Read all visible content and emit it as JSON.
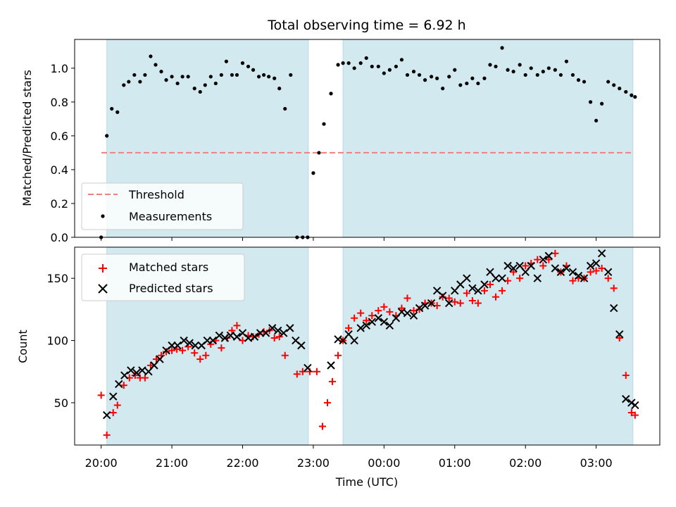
{
  "chart_data": {
    "title": "Total observing time = 6.92 h",
    "xlabel": "Time (UTC)",
    "x_ticks": [
      "20:00",
      "21:00",
      "22:00",
      "23:00",
      "00:00",
      "01:00",
      "02:00",
      "03:00"
    ],
    "x_tick_hours": [
      20,
      21,
      22,
      23,
      24,
      25,
      26,
      27
    ],
    "x_range_hours": [
      19.625,
      27.9
    ],
    "shaded_intervals_hours": [
      [
        20.08,
        22.93
      ],
      [
        23.42,
        27.52
      ]
    ],
    "shade_color": "#d2e9f0",
    "panels": [
      {
        "type": "scatter",
        "ylabel": "Matched/Predicted stars",
        "ylim": [
          0,
          1.17
        ],
        "y_ticks": [
          "0.0",
          "0.2",
          "0.4",
          "0.6",
          "0.8",
          "1.0"
        ],
        "threshold": {
          "name": "Threshold",
          "value": 0.5,
          "color": "#f08080",
          "style": "dashed"
        },
        "series": [
          {
            "name": "Measurements",
            "color": "#000000",
            "marker": "dot",
            "x": [
              20.0,
              20.08,
              20.15,
              20.23,
              20.32,
              20.39,
              20.47,
              20.55,
              20.62,
              20.7,
              20.77,
              20.85,
              20.92,
              21.0,
              21.08,
              21.15,
              21.23,
              21.32,
              21.4,
              21.47,
              21.55,
              21.62,
              21.7,
              21.77,
              21.85,
              21.92,
              22.0,
              22.08,
              22.15,
              22.23,
              22.3,
              22.37,
              22.45,
              22.52,
              22.6,
              22.68,
              22.77,
              22.85,
              22.92,
              23.0,
              23.08,
              23.15,
              23.25,
              23.35,
              23.42,
              23.5,
              23.58,
              23.67,
              23.75,
              23.83,
              23.92,
              24.0,
              24.08,
              24.17,
              24.25,
              24.33,
              24.42,
              24.5,
              24.58,
              24.67,
              24.75,
              24.83,
              24.92,
              25.0,
              25.08,
              25.17,
              25.25,
              25.33,
              25.42,
              25.5,
              25.58,
              25.67,
              25.75,
              25.83,
              25.92,
              26.0,
              26.08,
              26.17,
              26.25,
              26.33,
              26.42,
              26.5,
              26.58,
              26.67,
              26.75,
              26.83,
              26.92,
              27.0,
              27.08,
              27.17,
              27.25,
              27.33,
              27.42,
              27.5,
              27.55
            ],
            "y": [
              0.0,
              0.6,
              0.76,
              0.74,
              0.9,
              0.92,
              0.96,
              0.92,
              0.96,
              1.07,
              1.02,
              0.98,
              0.93,
              0.95,
              0.91,
              0.95,
              0.95,
              0.88,
              0.86,
              0.9,
              0.95,
              0.91,
              0.96,
              1.04,
              0.96,
              0.96,
              1.03,
              1.01,
              0.99,
              0.95,
              0.96,
              0.95,
              0.94,
              0.88,
              0.76,
              0.96,
              0.0,
              0.0,
              0.0,
              0.38,
              0.5,
              0.67,
              0.85,
              1.02,
              1.03,
              1.03,
              1.0,
              1.03,
              1.06,
              1.01,
              1.01,
              0.97,
              0.99,
              1.01,
              1.05,
              0.96,
              0.98,
              0.96,
              0.93,
              0.95,
              0.94,
              0.88,
              0.95,
              0.99,
              0.9,
              0.91,
              0.94,
              0.91,
              0.94,
              1.02,
              1.01,
              1.12,
              0.99,
              0.98,
              1.02,
              0.96,
              1.0,
              0.96,
              0.98,
              1.0,
              0.99,
              0.96,
              1.04,
              0.96,
              0.93,
              0.92,
              0.8,
              0.69,
              0.79,
              0.92,
              0.9,
              0.88,
              0.86,
              0.84,
              0.83
            ]
          }
        ]
      },
      {
        "type": "scatter",
        "ylabel": "Count",
        "ylim": [
          16,
          175
        ],
        "y_ticks": [
          "50",
          "100",
          "150"
        ],
        "y_tick_values": [
          50,
          100,
          150
        ],
        "series": [
          {
            "name": "Matched stars",
            "color": "#ff0000",
            "marker": "plus",
            "x": [
              20.0,
              20.08,
              20.17,
              20.23,
              20.32,
              20.4,
              20.48,
              20.55,
              20.62,
              20.7,
              20.78,
              20.85,
              20.92,
              21.0,
              21.07,
              21.15,
              21.23,
              21.32,
              21.4,
              21.48,
              21.55,
              21.62,
              21.7,
              21.78,
              21.85,
              21.92,
              22.0,
              22.08,
              22.15,
              22.23,
              22.3,
              22.38,
              22.45,
              22.52,
              22.6,
              22.77,
              22.85,
              22.95,
              23.05,
              23.13,
              23.2,
              23.27,
              23.35,
              23.42,
              23.5,
              23.58,
              23.67,
              23.75,
              23.83,
              23.92,
              24.0,
              24.08,
              24.17,
              24.25,
              24.33,
              24.42,
              24.5,
              24.58,
              24.67,
              24.75,
              24.83,
              24.92,
              25.0,
              25.08,
              25.17,
              25.25,
              25.33,
              25.42,
              25.5,
              25.58,
              25.67,
              25.75,
              25.83,
              25.92,
              26.0,
              26.08,
              26.17,
              26.25,
              26.33,
              26.42,
              26.5,
              26.58,
              26.67,
              26.75,
              26.83,
              26.92,
              27.0,
              27.08,
              27.17,
              27.25,
              27.33,
              27.42,
              27.5,
              27.55
            ],
            "y": [
              56,
              24,
              42,
              48,
              64,
              70,
              72,
              70,
              70,
              80,
              85,
              88,
              91,
              92,
              93,
              92,
              95,
              90,
              85,
              88,
              97,
              100,
              94,
              102,
              108,
              112,
              100,
              104,
              103,
              105,
              107,
              108,
              102,
              103,
              88,
              73,
              75,
              75,
              75,
              31,
              50,
              67,
              88,
              100,
              110,
              118,
              122,
              116,
              120,
              124,
              127,
              123,
              120,
              126,
              134,
              124,
              125,
              130,
              130,
              128,
              135,
              134,
              131,
              130,
              138,
              132,
              130,
              140,
              145,
              135,
              140,
              148,
              155,
              150,
              160,
              162,
              165,
              160,
              165,
              170,
              155,
              160,
              148,
              150,
              150,
              155,
              156,
              158,
              150,
              142,
              102,
              72,
              42,
              40
            ]
          },
          {
            "name": "Predicted stars",
            "color": "#000000",
            "marker": "x",
            "x": [
              20.08,
              20.17,
              20.25,
              20.33,
              20.42,
              20.5,
              20.58,
              20.67,
              20.75,
              20.83,
              20.92,
              21.0,
              21.08,
              21.17,
              21.25,
              21.33,
              21.42,
              21.5,
              21.58,
              21.67,
              21.75,
              21.83,
              21.92,
              22.0,
              22.08,
              22.17,
              22.25,
              22.33,
              22.42,
              22.5,
              22.58,
              22.67,
              22.75,
              22.83,
              22.92,
              23.25,
              23.35,
              23.42,
              23.5,
              23.58,
              23.67,
              23.75,
              23.83,
              23.92,
              24.0,
              24.08,
              24.17,
              24.25,
              24.33,
              24.42,
              24.5,
              24.58,
              24.67,
              24.75,
              24.83,
              24.92,
              25.0,
              25.08,
              25.17,
              25.25,
              25.33,
              25.42,
              25.5,
              25.58,
              25.67,
              25.75,
              25.83,
              25.92,
              26.0,
              26.08,
              26.17,
              26.25,
              26.33,
              26.42,
              26.5,
              26.58,
              26.67,
              26.75,
              26.83,
              26.92,
              27.0,
              27.08,
              27.17,
              27.25,
              27.33,
              27.42,
              27.5,
              27.55
            ],
            "y": [
              40,
              55,
              65,
              72,
              76,
              74,
              76,
              75,
              80,
              85,
              92,
              96,
              96,
              100,
              98,
              96,
              96,
              100,
              100,
              104,
              102,
              104,
              103,
              106,
              102,
              103,
              106,
              106,
              110,
              108,
              106,
              110,
              100,
              96,
              78,
              80,
              101,
              100,
              105,
              100,
              110,
              112,
              115,
              118,
              115,
              112,
              118,
              123,
              122,
              120,
              126,
              128,
              130,
              140,
              136,
              130,
              140,
              145,
              150,
              142,
              140,
              145,
              155,
              150,
              150,
              160,
              158,
              160,
              155,
              160,
              150,
              165,
              168,
              158,
              155,
              158,
              155,
              152,
              150,
              160,
              162,
              170,
              155,
              126,
              105,
              53,
              50,
              48
            ]
          }
        ]
      }
    ]
  }
}
